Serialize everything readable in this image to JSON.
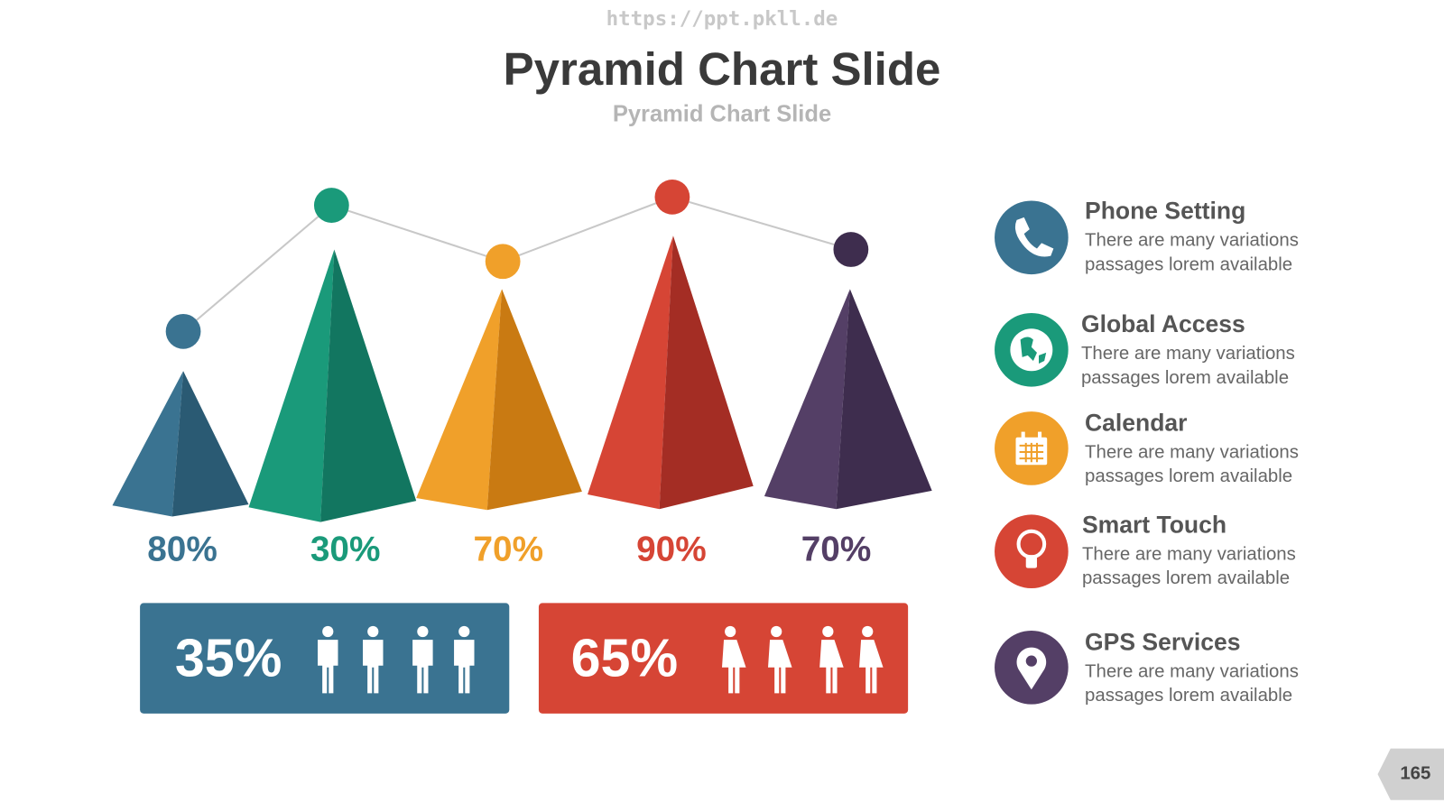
{
  "header": {
    "url": "https://ppt.pkll.de",
    "title": "Pyramid Chart Slide",
    "subtitle": "Pyramid Chart Slide"
  },
  "pyramids": [
    "80%",
    "30%",
    "70%",
    "90%",
    "70%"
  ],
  "stats": [
    "35%",
    "65%"
  ],
  "features": [
    {
      "title": "Phone Setting",
      "lines": [
        "There are many variations",
        "passages lorem available"
      ]
    },
    {
      "title": "Global Access",
      "lines": [
        "There are many variations",
        "passages lorem available"
      ]
    },
    {
      "title": "Calendar",
      "lines": [
        "There are many variations",
        "passages lorem available"
      ]
    },
    {
      "title": "Smart Touch",
      "lines": [
        "There are many variations",
        "passages lorem available"
      ]
    },
    {
      "title": "GPS Services",
      "lines": [
        "There are many variations",
        "passages lorem available"
      ]
    }
  ],
  "page_number": "165"
}
